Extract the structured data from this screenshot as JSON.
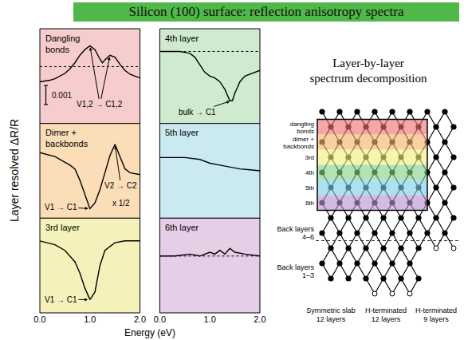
{
  "title": "Silicon (100) surface: reflection anisotropy spectra",
  "x_label": "Energy (eV)",
  "y_label": "Layer resolved ΔR/R",
  "chart_data": [
    {
      "type": "line",
      "title": "Dangling bonds",
      "xlim": [
        0,
        2
      ],
      "ylim": [
        -0.003,
        0.002
      ],
      "grid": false,
      "tick_labels": false,
      "series": [
        {
          "color": "#000000",
          "line_style": "solid",
          "x": [
            0,
            0.1,
            0.2,
            0.3,
            0.4,
            0.5,
            0.6,
            0.7,
            0.8,
            0.9,
            1.0,
            1.1,
            1.2,
            1.25,
            1.3,
            1.4,
            1.5,
            1.6,
            1.7,
            1.8,
            1.9,
            2.0
          ],
          "values": [
            -0.0008,
            -0.00076,
            -0.00072,
            -0.00064,
            -0.0005,
            -0.00036,
            -0.00012,
            0.0002,
            0.0006,
            0.0009,
            0.0011,
            0.0009,
            0.0004,
            0.0002,
            0.00036,
            0.0006,
            0.0005,
            0.00012,
            -0.0002,
            -0.0004,
            -0.0005,
            -0.0006
          ]
        },
        {
          "color": "#000000",
          "line_style": "dotted",
          "x": [
            0,
            2
          ],
          "values": [
            0,
            0
          ]
        }
      ],
      "annotations": [
        {
          "text": "V1,2 → C1,2",
          "x": 1.2,
          "y": -0.002,
          "arrows": [
            [
              1.0,
              0.0011
            ],
            [
              1.4,
              0.0006
            ]
          ]
        }
      ],
      "scale_bar": {
        "value": 0.001,
        "x": 0.12,
        "y": -0.002
      }
    },
    {
      "type": "line",
      "title": "4th layer",
      "xlim": [
        0,
        2
      ],
      "ylim": [
        -0.0038,
        0.0012
      ],
      "grid": false,
      "tick_labels": false,
      "series": [
        {
          "color": "#000000",
          "line_style": "solid",
          "x": [
            0,
            0.2,
            0.4,
            0.5,
            0.6,
            0.7,
            0.8,
            0.9,
            1.0,
            1.1,
            1.2,
            1.3,
            1.4,
            1.45,
            1.5,
            1.6,
            1.7,
            1.8,
            2.0
          ],
          "values": [
            0,
            0,
            0,
            -5e-05,
            -0.0001,
            -0.0003,
            -0.0007,
            -0.0011,
            -0.0013,
            -0.0014,
            -0.0016,
            -0.002,
            -0.0026,
            -0.0026,
            -0.0022,
            -0.0016,
            -0.0013,
            -0.0012,
            -0.001
          ]
        },
        {
          "color": "#000000",
          "line_style": "dotted",
          "x": [
            0,
            2
          ],
          "values": [
            0,
            0
          ]
        }
      ],
      "annotations": [
        {
          "text": "bulk → C1",
          "x": 0.75,
          "y": -0.0032,
          "arrows": [
            [
              1.43,
              -0.0026
            ]
          ]
        }
      ]
    },
    {
      "type": "line",
      "title": "Dimer + backbonds",
      "xlim": [
        0,
        2
      ],
      "ylim": [
        -0.003,
        0.002
      ],
      "grid": false,
      "tick_labels": false,
      "series": [
        {
          "color": "#000000",
          "line_style": "solid",
          "x": [
            0,
            0.3,
            0.6,
            0.7,
            0.8,
            0.9,
            1.0,
            1.1,
            1.2,
            1.3,
            1.4,
            1.5,
            1.6,
            1.7,
            1.8,
            2.0
          ],
          "values": [
            0.00046,
            0.00025,
            -0.0002,
            -0.0004,
            -0.001,
            -0.0018,
            -0.0025,
            -0.0022,
            -0.0015,
            -0.0006,
            0.0003,
            0.0009,
            0.00025,
            -0.0004,
            -0.0006,
            -0.0007
          ]
        }
      ],
      "annotations": [
        {
          "text": "V1 → C1",
          "x": 0.42,
          "y": -0.0024,
          "arrows": [
            [
              1.0,
              -0.0025
            ]
          ]
        },
        {
          "text": "V2 → C2",
          "x": 1.62,
          "y": -0.0013,
          "arrows": [
            [
              1.5,
              0.0009
            ]
          ]
        },
        {
          "text": "x 1/2",
          "x": 1.62,
          "y": -0.0022
        }
      ]
    },
    {
      "type": "line",
      "title": "5th layer",
      "xlim": [
        0,
        2
      ],
      "ylim": [
        -0.0032,
        0.0018
      ],
      "grid": false,
      "tick_labels": false,
      "series": [
        {
          "color": "#000000",
          "line_style": "solid",
          "x": [
            0,
            0.5,
            0.8,
            1.0,
            1.2,
            1.4,
            1.6,
            1.8,
            2.0
          ],
          "values": [
            0,
            0,
            -0.0001,
            -0.0003,
            -0.0004,
            -0.0005,
            -0.0006,
            -0.00065,
            -0.0007
          ]
        }
      ]
    },
    {
      "type": "line",
      "title": "3rd layer",
      "xlim": [
        0,
        2
      ],
      "ylim": [
        -0.0038,
        0.0012
      ],
      "grid": false,
      "tick_labels": "x",
      "xticks": [
        {
          "value": 0,
          "label": "0.0"
        },
        {
          "value": 1,
          "label": "1.0"
        },
        {
          "value": 2,
          "label": "2.0"
        }
      ],
      "series": [
        {
          "color": "#000000",
          "line_style": "solid",
          "x": [
            0,
            0.3,
            0.5,
            0.7,
            0.8,
            0.9,
            1.0,
            1.1,
            1.2,
            1.3,
            1.5,
            1.7,
            2.0
          ],
          "values": [
            0,
            -0.0002,
            -0.0005,
            -0.0011,
            -0.0017,
            -0.0025,
            -0.0031,
            -0.0027,
            -0.0013,
            -0.0005,
            -0.0001,
            0,
            0
          ]
        }
      ],
      "annotations": [
        {
          "text": "V1 → C1",
          "x": 0.42,
          "y": -0.0031,
          "arrows": [
            [
              0.99,
              -0.0031
            ]
          ]
        }
      ]
    },
    {
      "type": "line",
      "title": "6th layer",
      "xlim": [
        0,
        2
      ],
      "ylim": [
        -0.003,
        0.002
      ],
      "grid": false,
      "tick_labels": "x",
      "xticks": [
        {
          "value": 0,
          "label": "0.0"
        },
        {
          "value": 1,
          "label": "1.0"
        },
        {
          "value": 2,
          "label": "2.0"
        }
      ],
      "series": [
        {
          "color": "#000000",
          "line_style": "solid",
          "x": [
            0,
            0.3,
            0.6,
            0.8,
            1.0,
            1.1,
            1.2,
            1.3,
            1.4,
            1.5,
            1.7,
            2.0
          ],
          "values": [
            0,
            0,
            0.0001,
            0,
            0.0002,
            0.0001,
            0.0003,
            0.0001,
            0.0004,
            0.0002,
            0.0001,
            0
          ]
        },
        {
          "color": "#000000",
          "line_style": "dotted",
          "x": [
            0,
            2
          ],
          "values": [
            0,
            0
          ]
        }
      ]
    }
  ],
  "diagram": {
    "title": "Layer-by-layer spectrum decomposition",
    "layers": [
      "dangling bonds",
      "dimer + backbonds",
      "3rd",
      "4th",
      "5th",
      "6th"
    ],
    "back_layers": [
      "Back layers 4–6",
      "Back layers 1–3"
    ],
    "slabs": [
      {
        "name": "Symmetric slab",
        "size": "12 layers"
      },
      {
        "name": "H-terminated",
        "size": "12 layers"
      },
      {
        "name": "H-terminated",
        "size": "9 layers"
      }
    ]
  }
}
